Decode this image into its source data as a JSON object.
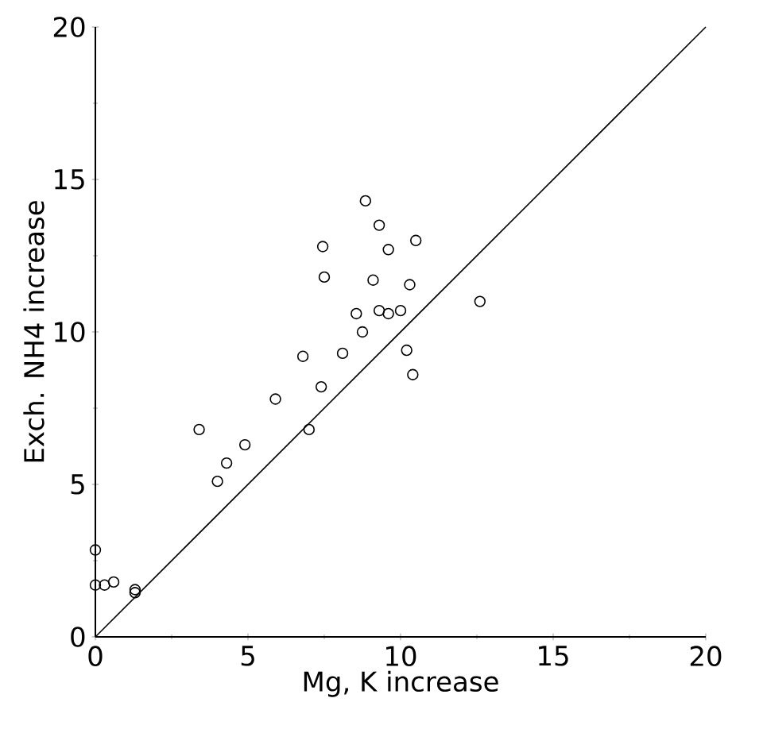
{
  "chart_data": {
    "type": "scatter",
    "xlabel": "Mg, K increase",
    "ylabel": "Exch. NH4 increase",
    "xlim": [
      0,
      20
    ],
    "ylim": [
      0,
      20
    ],
    "xticks": [
      0,
      5,
      10,
      15,
      20
    ],
    "yticks": [
      0,
      5,
      10,
      15,
      20
    ],
    "grid": false,
    "series": [
      {
        "marker": "circle",
        "color": "#000000",
        "x": [
          0,
          0,
          0.3,
          0.6,
          1.3,
          1.3,
          3.4,
          4.0,
          4.3,
          4.9,
          5.9,
          7.0,
          7.4,
          6.8,
          8.1,
          8.75,
          8.55,
          7.5,
          7.45,
          8.85,
          9.3,
          9.6,
          9.1,
          10.5,
          10.3,
          9.3,
          9.6,
          10.0,
          10.2,
          10.4,
          12.6
        ],
        "values": [
          2.85,
          1.7,
          1.7,
          1.8,
          1.55,
          1.45,
          6.8,
          5.1,
          5.7,
          6.3,
          7.8,
          6.8,
          8.2,
          9.2,
          9.3,
          10.0,
          10.6,
          11.8,
          12.8,
          14.3,
          13.5,
          12.7,
          11.7,
          13.0,
          11.55,
          10.7,
          10.6,
          10.7,
          9.4,
          8.6,
          11.0
        ]
      },
      {
        "type": "line",
        "color": "#000000",
        "x": [
          0,
          20
        ],
        "values": [
          0,
          20
        ]
      }
    ]
  }
}
